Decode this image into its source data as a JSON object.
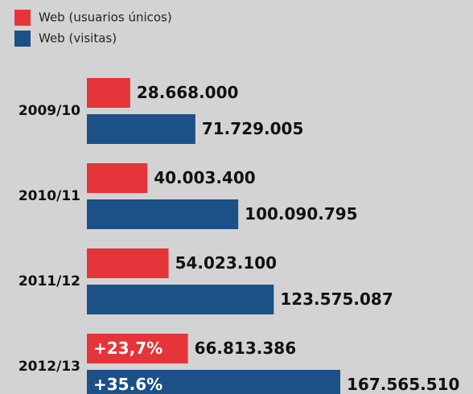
{
  "chart_data": {
    "type": "bar",
    "orientation": "horizontal",
    "categories": [
      "2009/10",
      "2010/11",
      "2011/12",
      "2012/13"
    ],
    "series": [
      {
        "name": "Web (usuarios únicos)",
        "color": "#e5343a",
        "values": [
          28668000,
          40003400,
          54023100,
          66813386
        ],
        "value_labels": [
          "28.668.000",
          "40.003.400",
          "54.023.100",
          "66.813.386"
        ],
        "annotations": [
          null,
          null,
          null,
          "+23,7%"
        ]
      },
      {
        "name": "Web (visitas)",
        "color": "#1b5187",
        "values": [
          71729005,
          100090795,
          123575087,
          167565510
        ],
        "value_labels": [
          "71.729.005",
          "100.090.795",
          "123.575.087",
          "167.565.510"
        ],
        "annotations": [
          null,
          null,
          null,
          "+35.6%"
        ]
      }
    ],
    "legend": "top-left"
  }
}
